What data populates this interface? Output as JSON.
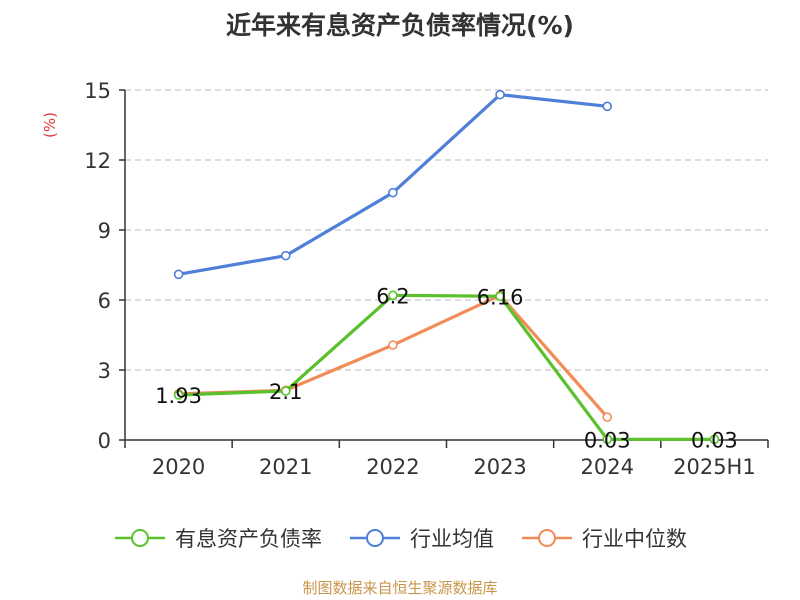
{
  "title": "近年来有息资产负债率情况(%)",
  "y_unit": "(%)",
  "footer": "制图数据来自恒生聚源数据库",
  "colors": {
    "debt_ratio": "#5ac12d",
    "industry_avg": "#4f7fd8",
    "industry_median": "#f28c57",
    "axis": "#333333",
    "grid": "#bbbbbb",
    "unit": "#e03a3a",
    "footer": "#c8964b"
  },
  "chart_data": {
    "type": "line",
    "title": "近年来有息资产负债率情况(%)",
    "xlabel": "",
    "ylabel": "(%)",
    "categories": [
      "2020",
      "2021",
      "2022",
      "2023",
      "2024",
      "2025H1"
    ],
    "ylim": [
      0,
      15
    ],
    "yticks": [
      0,
      3,
      6,
      9,
      12,
      15
    ],
    "grid": true,
    "legend_position": "bottom",
    "series": [
      {
        "name": "有息资产负债率",
        "color": "#5ac12d",
        "values": [
          1.93,
          2.1,
          6.2,
          6.16,
          0.03,
          0.03
        ],
        "labels": [
          "1.93",
          "2.1",
          "6.2",
          "6.16",
          "0.03",
          "0.03"
        ]
      },
      {
        "name": "行业均值",
        "color": "#4f7fd8",
        "values": [
          7.1,
          7.9,
          10.6,
          14.8,
          14.3,
          null
        ],
        "labels": []
      },
      {
        "name": "行业中位数",
        "color": "#f28c57",
        "values": [
          1.98,
          2.13,
          4.07,
          6.2,
          0.98,
          null
        ],
        "labels": []
      }
    ]
  }
}
